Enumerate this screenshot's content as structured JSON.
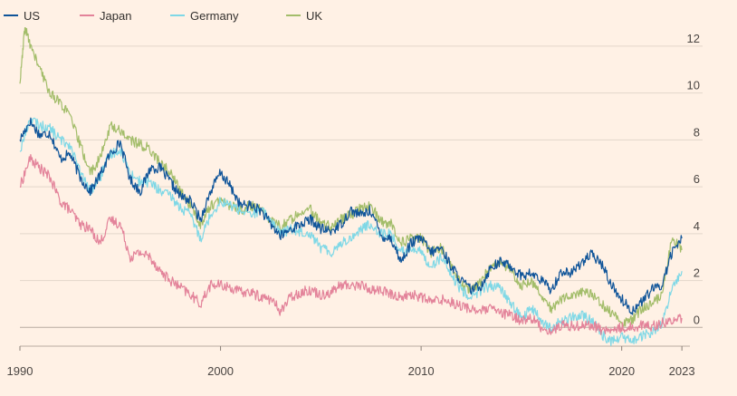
{
  "chart_data": {
    "type": "line",
    "title": "",
    "xlabel": "",
    "ylabel": "",
    "xlim": [
      1990,
      2023.4
    ],
    "ylim": [
      -0.8,
      13
    ],
    "x_ticks": [
      {
        "value": 1990,
        "label": "1990"
      },
      {
        "value": 2000,
        "label": "2000"
      },
      {
        "value": 2010,
        "label": "2010"
      },
      {
        "value": 2020,
        "label": "2020"
      },
      {
        "value": 2023,
        "label": "2023"
      }
    ],
    "y_ticks": [
      {
        "value": 0,
        "label": "0"
      },
      {
        "value": 2,
        "label": "2"
      },
      {
        "value": 4,
        "label": "4"
      },
      {
        "value": 6,
        "label": "6"
      },
      {
        "value": 8,
        "label": "8"
      },
      {
        "value": 10,
        "label": "10"
      },
      {
        "value": 12,
        "label": "12"
      }
    ],
    "grid": true,
    "legend_position": "top-left",
    "series": [
      {
        "name": "US",
        "color": "#0F5499",
        "x": [
          1990,
          1990.5,
          1991,
          1991.5,
          1992,
          1992.5,
          1993,
          1993.5,
          1994,
          1994.5,
          1995,
          1995.5,
          1996,
          1996.5,
          1997,
          1997.5,
          1998,
          1998.5,
          1999,
          1999.5,
          2000,
          2000.5,
          2001,
          2001.5,
          2002,
          2002.5,
          2003,
          2003.5,
          2004,
          2004.5,
          2005,
          2005.5,
          2006,
          2006.5,
          2007,
          2007.5,
          2008,
          2008.5,
          2009,
          2009.5,
          2010,
          2010.5,
          2011,
          2011.5,
          2012,
          2012.5,
          2013,
          2013.5,
          2014,
          2014.5,
          2015,
          2015.5,
          2016,
          2016.5,
          2017,
          2017.5,
          2018,
          2018.5,
          2019,
          2019.5,
          2020,
          2020.5,
          2021,
          2021.5,
          2022,
          2022.5,
          2023
        ],
        "values": [
          8.0,
          8.8,
          8.2,
          8.3,
          7.2,
          7.4,
          6.4,
          5.8,
          6.5,
          7.4,
          7.9,
          6.3,
          5.8,
          6.8,
          6.8,
          6.2,
          5.6,
          5.4,
          4.6,
          5.8,
          6.6,
          6.0,
          5.2,
          5.2,
          5.0,
          4.4,
          3.9,
          4.2,
          4.4,
          4.6,
          4.2,
          4.1,
          4.4,
          5.0,
          4.8,
          5.0,
          3.9,
          3.8,
          2.8,
          3.6,
          3.8,
          3.2,
          3.4,
          2.6,
          2.0,
          1.6,
          1.8,
          2.6,
          2.8,
          2.6,
          2.2,
          2.3,
          2.0,
          1.6,
          2.4,
          2.3,
          2.8,
          3.1,
          2.7,
          1.8,
          1.2,
          0.7,
          1.1,
          1.6,
          1.8,
          3.2,
          3.8
        ]
      },
      {
        "name": "Japan",
        "color": "#E3839A",
        "x": [
          1990,
          1990.5,
          1991,
          1991.5,
          1992,
          1992.5,
          1993,
          1993.5,
          1994,
          1994.5,
          1995,
          1995.5,
          1996,
          1996.5,
          1997,
          1997.5,
          1998,
          1998.5,
          1999,
          1999.5,
          2000,
          2000.5,
          2001,
          2001.5,
          2002,
          2002.5,
          2003,
          2003.5,
          2004,
          2004.5,
          2005,
          2005.5,
          2006,
          2006.5,
          2007,
          2007.5,
          2008,
          2008.5,
          2009,
          2009.5,
          2010,
          2010.5,
          2011,
          2011.5,
          2012,
          2012.5,
          2013,
          2013.5,
          2014,
          2014.5,
          2015,
          2015.5,
          2016,
          2016.5,
          2017,
          2017.5,
          2018,
          2018.5,
          2019,
          2019.5,
          2020,
          2020.5,
          2021,
          2021.5,
          2022,
          2022.5,
          2023
        ],
        "values": [
          6.0,
          7.2,
          6.8,
          6.4,
          5.4,
          5.0,
          4.4,
          4.2,
          3.6,
          4.6,
          4.4,
          3.0,
          3.2,
          3.0,
          2.4,
          2.0,
          1.7,
          1.4,
          1.0,
          1.8,
          1.8,
          1.7,
          1.5,
          1.5,
          1.3,
          1.2,
          0.7,
          1.3,
          1.5,
          1.6,
          1.4,
          1.5,
          1.8,
          1.8,
          1.8,
          1.6,
          1.6,
          1.4,
          1.3,
          1.4,
          1.3,
          1.1,
          1.2,
          1.1,
          0.9,
          0.8,
          0.7,
          0.8,
          0.6,
          0.5,
          0.3,
          0.4,
          0.0,
          -0.2,
          0.1,
          0.05,
          0.1,
          0.1,
          -0.1,
          -0.15,
          0.0,
          0.0,
          0.1,
          0.05,
          0.2,
          0.25,
          0.4
        ]
      },
      {
        "name": "Germany",
        "color": "#7FD8E6",
        "x": [
          1990,
          1990.5,
          1991,
          1991.5,
          1992,
          1992.5,
          1993,
          1993.5,
          1994,
          1994.5,
          1995,
          1995.5,
          1996,
          1996.5,
          1997,
          1997.5,
          1998,
          1998.5,
          1999,
          1999.5,
          2000,
          2000.5,
          2001,
          2001.5,
          2002,
          2002.5,
          2003,
          2003.5,
          2004,
          2004.5,
          2005,
          2005.5,
          2006,
          2006.5,
          2007,
          2007.5,
          2008,
          2008.5,
          2009,
          2009.5,
          2010,
          2010.5,
          2011,
          2011.5,
          2012,
          2012.5,
          2013,
          2013.5,
          2014,
          2014.5,
          2015,
          2015.5,
          2016,
          2016.5,
          2017,
          2017.5,
          2018,
          2018.5,
          2019,
          2019.5,
          2020,
          2020.5,
          2021,
          2021.5,
          2022,
          2022.5,
          2023
        ],
        "values": [
          7.5,
          8.9,
          8.6,
          8.5,
          8.0,
          7.8,
          6.6,
          5.8,
          6.4,
          7.4,
          7.6,
          6.6,
          6.2,
          6.2,
          5.8,
          5.6,
          5.1,
          4.8,
          3.8,
          4.8,
          5.4,
          5.2,
          5.0,
          4.8,
          5.0,
          4.6,
          4.0,
          4.2,
          4.1,
          4.0,
          3.4,
          3.2,
          3.6,
          3.8,
          4.2,
          4.4,
          4.0,
          4.0,
          3.2,
          3.4,
          3.2,
          2.6,
          3.0,
          2.2,
          1.6,
          1.3,
          1.6,
          1.8,
          1.6,
          1.0,
          0.4,
          0.8,
          0.3,
          -0.1,
          0.3,
          0.4,
          0.5,
          0.3,
          -0.3,
          -0.6,
          -0.4,
          -0.6,
          -0.4,
          -0.2,
          0.1,
          1.6,
          2.4
        ]
      },
      {
        "name": "UK",
        "color": "#A3BD6A",
        "x": [
          1990,
          1990.25,
          1990.5,
          1991,
          1991.5,
          1992,
          1992.5,
          1993,
          1993.5,
          1994,
          1994.5,
          1995,
          1995.5,
          1996,
          1996.5,
          1997,
          1997.5,
          1998,
          1998.5,
          1999,
          1999.5,
          2000,
          2000.5,
          2001,
          2001.5,
          2002,
          2002.5,
          2003,
          2003.5,
          2004,
          2004.5,
          2005,
          2005.5,
          2006,
          2006.5,
          2007,
          2007.5,
          2008,
          2008.5,
          2009,
          2009.5,
          2010,
          2010.5,
          2011,
          2011.5,
          2012,
          2012.5,
          2013,
          2013.5,
          2014,
          2014.5,
          2015,
          2015.5,
          2016,
          2016.5,
          2017,
          2017.5,
          2018,
          2018.5,
          2019,
          2019.5,
          2020,
          2020.5,
          2021,
          2021.5,
          2022,
          2022.5,
          2023
        ],
        "values": [
          10.4,
          12.8,
          12.1,
          11.0,
          10.0,
          9.6,
          9.0,
          7.8,
          6.6,
          7.2,
          8.6,
          8.4,
          8.0,
          7.8,
          7.6,
          7.0,
          6.6,
          5.8,
          5.2,
          4.4,
          5.2,
          5.4,
          5.2,
          5.0,
          5.2,
          5.0,
          4.6,
          4.3,
          4.6,
          5.0,
          5.0,
          4.4,
          4.3,
          4.6,
          4.8,
          5.1,
          5.2,
          4.5,
          4.4,
          3.6,
          3.8,
          3.8,
          3.2,
          3.4,
          2.6,
          1.8,
          1.6,
          2.0,
          2.6,
          2.8,
          2.4,
          1.8,
          2.0,
          1.4,
          0.8,
          1.2,
          1.4,
          1.5,
          1.4,
          1.0,
          0.6,
          0.2,
          0.3,
          0.8,
          1.0,
          1.4,
          3.8,
          3.3
        ]
      }
    ]
  }
}
